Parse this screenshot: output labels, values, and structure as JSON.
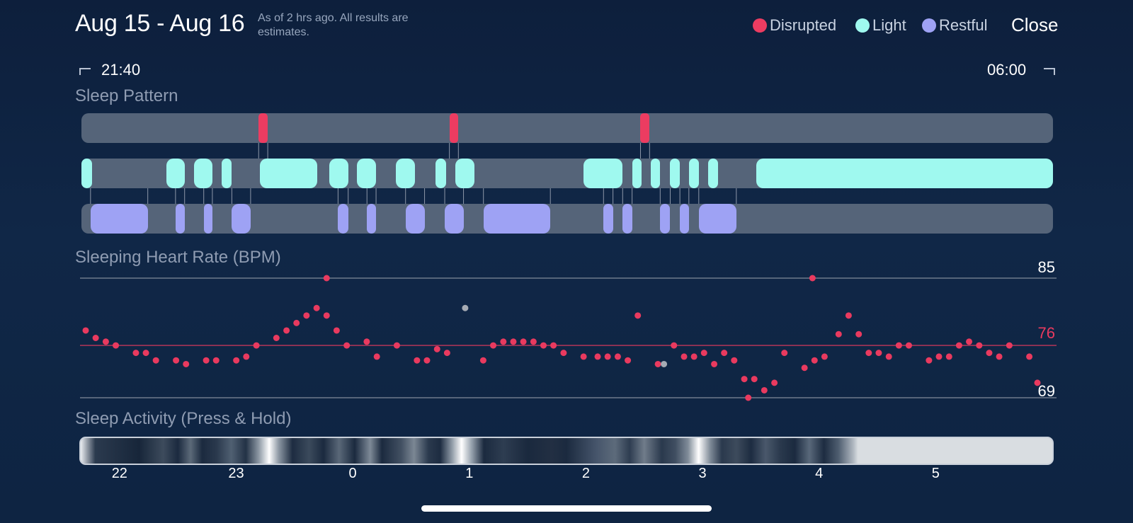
{
  "header": {
    "title": "Aug 15 - Aug 16",
    "note": "As of 2 hrs ago. All results are estimates.",
    "close_label": "Close"
  },
  "legend": [
    {
      "label": "Disrupted",
      "color": "#ec3c61"
    },
    {
      "label": "Light",
      "color": "#9ff9ef"
    },
    {
      "label": "Restful",
      "color": "#9ea2f4"
    }
  ],
  "time_range": {
    "start": "21:40",
    "end": "06:00"
  },
  "sections": {
    "sleep_pattern": "Sleep Pattern",
    "heart_rate": "Sleeping Heart Rate (BPM)",
    "activity": "Sleep Activity (Press & Hold)"
  },
  "sleep_pattern": {
    "start_hour": 21.667,
    "end_hour": 30.0,
    "disrupted": [
      [
        23.187,
        23.265
      ],
      [
        24.823,
        24.9
      ],
      [
        26.462,
        26.54
      ]
    ],
    "light": [
      [
        21.667,
        21.757
      ],
      [
        22.397,
        22.552
      ],
      [
        22.632,
        22.79
      ],
      [
        22.872,
        22.955
      ],
      [
        23.197,
        23.69
      ],
      [
        23.79,
        23.955
      ],
      [
        24.03,
        24.194
      ],
      [
        24.366,
        24.53
      ],
      [
        24.706,
        24.792
      ],
      [
        24.872,
        25.036
      ],
      [
        25.974,
        26.31
      ],
      [
        26.39,
        26.471
      ],
      [
        26.551,
        26.632
      ],
      [
        26.717,
        26.8
      ],
      [
        26.88,
        26.962
      ],
      [
        27.042,
        27.126
      ],
      [
        27.456,
        30.0
      ]
    ],
    "restful": [
      [
        21.745,
        22.236
      ],
      [
        22.474,
        22.552
      ],
      [
        22.716,
        22.79
      ],
      [
        22.957,
        23.118
      ],
      [
        23.868,
        23.955
      ],
      [
        24.116,
        24.194
      ],
      [
        24.447,
        24.61
      ],
      [
        24.783,
        24.944
      ],
      [
        25.115,
        25.689
      ],
      [
        26.145,
        26.226
      ],
      [
        26.309,
        26.39
      ],
      [
        26.631,
        26.717
      ],
      [
        26.8,
        26.877
      ],
      [
        26.962,
        27.284
      ]
    ]
  },
  "chart_data": {
    "type": "scatter",
    "title": "Sleeping Heart Rate (BPM)",
    "ylabel": "BPM",
    "ylim": [
      69,
      85
    ],
    "yticks": [
      85,
      76,
      69
    ],
    "average": 76,
    "x_unit": "hour (24+ = next day)",
    "series": [
      {
        "name": "Heart rate",
        "color": "#e93a5f",
        "x": [
          21.7,
          21.783,
          21.867,
          21.95,
          22.117,
          22.2,
          22.283,
          22.45,
          22.533,
          22.7,
          22.783,
          22.95,
          23.033,
          23.117,
          23.283,
          23.367,
          23.45,
          23.533,
          23.617,
          23.7,
          23.783,
          23.867,
          24.033,
          24.117,
          24.283,
          24.45,
          24.533,
          24.617,
          24.7,
          25.0,
          25.083,
          25.167,
          25.25,
          25.333,
          25.417,
          25.5,
          25.583,
          25.667,
          25.833,
          25.95,
          26.033,
          26.117,
          26.2,
          26.283,
          26.45,
          26.583,
          26.667,
          26.75,
          26.833,
          26.917,
          27.0,
          27.083,
          27.167,
          27.25,
          27.333,
          27.417,
          27.5,
          27.667,
          27.75,
          27.833,
          27.95,
          28.033,
          28.117,
          28.2,
          28.283,
          28.367,
          28.45,
          28.533,
          28.7,
          28.783,
          28.867,
          28.95,
          29.033,
          29.117,
          29.2,
          29.283,
          29.367,
          29.533,
          29.6
        ],
        "y": [
          78,
          77,
          76.5,
          76,
          75,
          75,
          74,
          74,
          73.5,
          74,
          74,
          74,
          74.5,
          76,
          77,
          78,
          79,
          80,
          81,
          80,
          78,
          76,
          76.5,
          74.5,
          76,
          74,
          74,
          75.5,
          75,
          74,
          76,
          76.5,
          76.5,
          76.5,
          76.5,
          76,
          76,
          75,
          74.5,
          74.5,
          74.5,
          74.5,
          74,
          80,
          73.5,
          76,
          74.5,
          74.5,
          75,
          73.5,
          75,
          74,
          71.5,
          71.5,
          70,
          71,
          75,
          73,
          74,
          74.5,
          77.5,
          80,
          77.5,
          75,
          75,
          74.5,
          76,
          76,
          74,
          74.5,
          74.5,
          76,
          76.5,
          76,
          75,
          74.5,
          76,
          74.5,
          71
        ]
      },
      {
        "name": "Other",
        "color": "#a6abb4",
        "x": [
          24.85,
          26.5
        ],
        "y": [
          81,
          73.5
        ]
      }
    ],
    "outliers": [
      {
        "x": 23.7,
        "y": 85
      },
      {
        "x": 27.733,
        "y": 85
      },
      {
        "x": 27.2,
        "y": 69
      }
    ]
  },
  "activity_axis": {
    "start_hour": 21.667,
    "end_hour": 30.0,
    "ticks": [
      {
        "label": "22",
        "hour": 22
      },
      {
        "label": "23",
        "hour": 23
      },
      {
        "label": "0",
        "hour": 24
      },
      {
        "label": "1",
        "hour": 25
      },
      {
        "label": "2",
        "hour": 26
      },
      {
        "label": "3",
        "hour": 27
      },
      {
        "label": "4",
        "hour": 28
      },
      {
        "label": "5",
        "hour": 29
      }
    ]
  }
}
